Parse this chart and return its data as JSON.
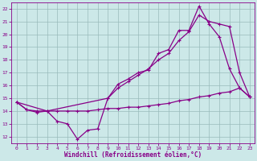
{
  "bg_color": "#cce8e8",
  "grid_color": "#99bbbb",
  "line_color": "#880088",
  "xlabel": "Windchill (Refroidissement éolien,°C)",
  "xlim": [
    -0.5,
    23.5
  ],
  "ylim": [
    11.5,
    22.5
  ],
  "xticks": [
    0,
    1,
    2,
    3,
    4,
    5,
    6,
    7,
    8,
    9,
    10,
    11,
    12,
    13,
    14,
    15,
    16,
    17,
    18,
    19,
    20,
    21,
    22,
    23
  ],
  "yticks": [
    12,
    13,
    14,
    15,
    16,
    17,
    18,
    19,
    20,
    21,
    22
  ],
  "curve1_x": [
    0,
    1,
    2,
    3,
    4,
    5,
    6,
    7,
    8,
    9,
    10,
    11,
    12,
    13,
    14,
    15,
    16,
    17,
    18,
    19,
    20,
    21,
    22,
    23
  ],
  "curve1_y": [
    14.7,
    14.1,
    13.9,
    14.0,
    13.2,
    13.0,
    11.8,
    12.5,
    12.6,
    15.0,
    16.1,
    16.5,
    17.0,
    17.2,
    18.5,
    18.8,
    20.3,
    20.3,
    22.2,
    20.8,
    19.8,
    17.3,
    15.8,
    15.1
  ],
  "curve2_x": [
    0,
    3,
    9,
    10,
    11,
    12,
    13,
    14,
    15,
    16,
    17,
    18,
    19,
    20,
    21,
    22,
    23
  ],
  "curve2_y": [
    14.7,
    14.0,
    15.0,
    15.8,
    16.3,
    16.8,
    17.3,
    18.0,
    18.5,
    19.5,
    20.2,
    21.5,
    21.0,
    20.8,
    20.6,
    17.0,
    15.1
  ],
  "curve3_x": [
    0,
    1,
    2,
    3,
    4,
    5,
    6,
    7,
    8,
    9,
    10,
    11,
    12,
    13,
    14,
    15,
    16,
    17,
    18,
    19,
    20,
    21,
    22,
    23
  ],
  "curve3_y": [
    14.7,
    14.1,
    14.0,
    14.0,
    14.0,
    14.0,
    14.0,
    14.0,
    14.1,
    14.2,
    14.2,
    14.3,
    14.3,
    14.4,
    14.5,
    14.6,
    14.8,
    14.9,
    15.1,
    15.2,
    15.4,
    15.5,
    15.8,
    15.1
  ]
}
